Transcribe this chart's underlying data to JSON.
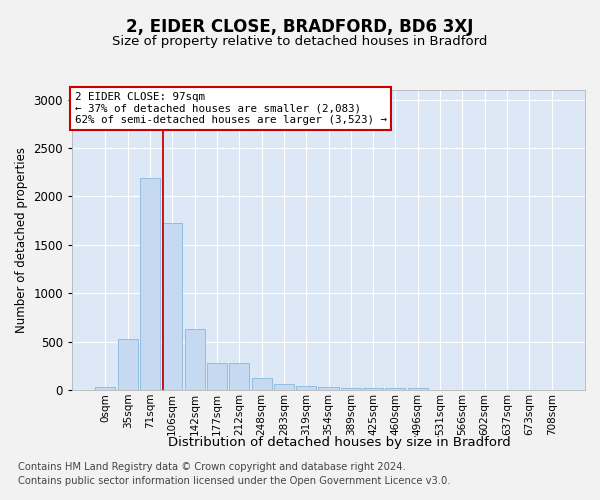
{
  "title1": "2, EIDER CLOSE, BRADFORD, BD6 3XJ",
  "title2": "Size of property relative to detached houses in Bradford",
  "xlabel": "Distribution of detached houses by size in Bradford",
  "ylabel": "Number of detached properties",
  "bar_color": "#c5d9f0",
  "bar_edge_color": "#7ab0d8",
  "background_color": "#dce8f5",
  "grid_color": "#ffffff",
  "red_line_color": "#cc0000",
  "categories": [
    "0sqm",
    "35sqm",
    "71sqm",
    "106sqm",
    "142sqm",
    "177sqm",
    "212sqm",
    "248sqm",
    "283sqm",
    "319sqm",
    "354sqm",
    "389sqm",
    "425sqm",
    "460sqm",
    "496sqm",
    "531sqm",
    "566sqm",
    "602sqm",
    "637sqm",
    "673sqm",
    "708sqm"
  ],
  "values": [
    30,
    525,
    2190,
    1730,
    635,
    275,
    275,
    120,
    65,
    40,
    30,
    25,
    25,
    25,
    20,
    0,
    0,
    0,
    0,
    0,
    0
  ],
  "ylim": [
    0,
    3100
  ],
  "yticks": [
    0,
    500,
    1000,
    1500,
    2000,
    2500,
    3000
  ],
  "ann_title": "2 EIDER CLOSE: 97sqm",
  "ann_line1": "← 37% of detached houses are smaller (2,083)",
  "ann_line2": "62% of semi-detached houses are larger (3,523) →",
  "red_line_x": 2.57,
  "footnote1": "Contains HM Land Registry data © Crown copyright and database right 2024.",
  "footnote2": "Contains public sector information licensed under the Open Government Licence v3.0.",
  "fig_width": 6.0,
  "fig_height": 5.0,
  "fig_dpi": 100
}
